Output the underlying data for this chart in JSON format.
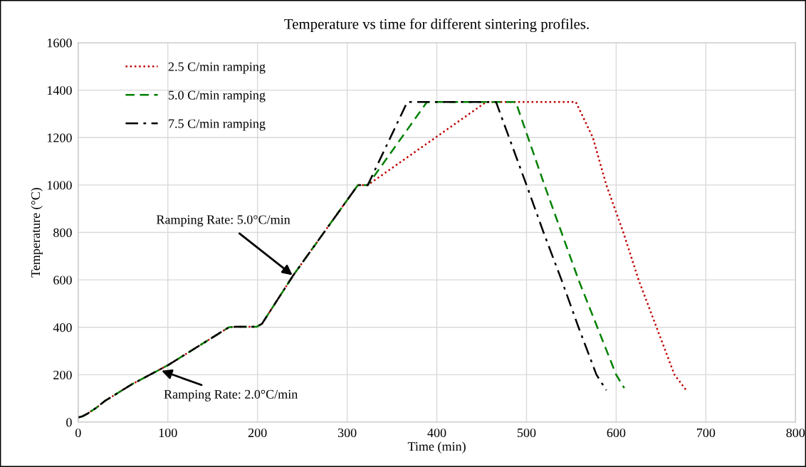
{
  "chart_data": {
    "type": "line",
    "title": "Temperature vs time for different sintering profiles.",
    "xlabel": "Time (min)",
    "ylabel": "Temperature (°C)",
    "xlim": [
      0,
      800
    ],
    "xticks": [
      0,
      100,
      200,
      300,
      400,
      500,
      600,
      700,
      800
    ],
    "ylim": [
      0,
      1600
    ],
    "yticks": [
      0,
      200,
      400,
      600,
      800,
      1000,
      1200,
      1400,
      1600
    ],
    "grid": true,
    "legend": "top left",
    "marker": "none",
    "series": [
      {
        "name": "2.5 C/min ramping",
        "color": "#c00000",
        "line_style": "dotted",
        "x": [
          0,
          5,
          10,
          20,
          30,
          60,
          100,
          168,
          175,
          199,
          205,
          240,
          312,
          323,
          455,
          555,
          574,
          589,
          608,
          625,
          645,
          665,
          678
        ],
        "values": [
          20,
          25,
          35,
          60,
          90,
          160,
          240,
          400,
          402,
          402,
          415,
          620,
          1000,
          1000,
          1350,
          1350,
          1200,
          1000,
          800,
          600,
          400,
          200,
          135
        ]
      },
      {
        "name": "5.0 C/min ramping",
        "color": "#008000",
        "line_style": "dashed",
        "x": [
          0,
          5,
          10,
          20,
          30,
          60,
          100,
          168,
          175,
          199,
          205,
          240,
          312,
          323,
          389,
          488,
          520,
          558,
          600,
          609
        ],
        "values": [
          20,
          25,
          35,
          60,
          90,
          160,
          240,
          400,
          402,
          402,
          415,
          620,
          1000,
          1000,
          1350,
          1350,
          1000,
          600,
          200,
          144
        ]
      },
      {
        "name": "7.5 C/min ramping",
        "color": "#000000",
        "line_style": "dashdot",
        "x": [
          0,
          5,
          10,
          20,
          30,
          60,
          100,
          168,
          175,
          199,
          205,
          240,
          312,
          323,
          367,
          466,
          500,
          519,
          539,
          558,
          578,
          589
        ],
        "values": [
          20,
          25,
          35,
          60,
          90,
          160,
          240,
          400,
          402,
          402,
          415,
          620,
          1000,
          1000,
          1350,
          1350,
          1000,
          800,
          600,
          400,
          200,
          135
        ]
      }
    ],
    "annotations": [
      {
        "text": "Ramping Rate: 5.0°C/min",
        "x": 239,
        "y": 620
      },
      {
        "text": "Ramping Rate: 2.0°C/min",
        "x": 93,
        "y": 217
      }
    ]
  }
}
